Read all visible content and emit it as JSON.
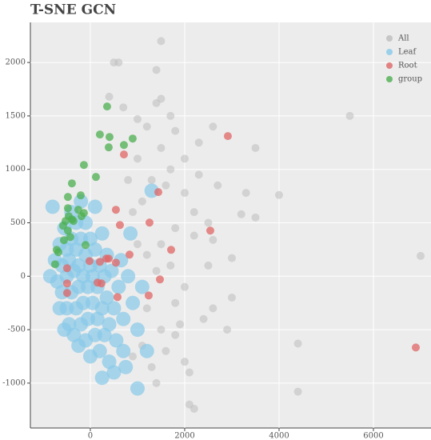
{
  "chart_data": {
    "type": "scatter",
    "title": "T-SNE GCN",
    "xlim": [
      -1270,
      7220
    ],
    "ylim": [
      -1420,
      2375
    ],
    "xticks": [
      0,
      2000,
      4000,
      6000
    ],
    "yticks": [
      -1000,
      -500,
      0,
      500,
      1000,
      1500,
      2000
    ],
    "grid": true,
    "legend": "top-right",
    "series": [
      {
        "name": "All",
        "color": "#bdbdbd",
        "x": [
          1500,
          500,
          600,
          400,
          700,
          1400,
          1500,
          1000,
          1200,
          1800,
          2600,
          3500,
          2300,
          2000,
          1500,
          1700,
          2300,
          1600,
          2000,
          2700,
          3300,
          4000,
          3200,
          3500,
          2200,
          2500,
          1800,
          2200,
          2600,
          3000,
          1700,
          1400,
          2000,
          1800,
          2600,
          3000,
          2400,
          2900,
          1800,
          1600,
          2000,
          2100,
          1400,
          2100,
          2200,
          4400,
          4400,
          5500,
          7000,
          1300,
          1100,
          900,
          1500,
          1200,
          1000,
          1200,
          900,
          1300,
          1000,
          800,
          1100,
          1500,
          2500,
          1900,
          1400,
          1700
        ],
        "values": [
          2200,
          2000,
          2000,
          1680,
          1580,
          1620,
          1660,
          1470,
          1400,
          1360,
          1400,
          1200,
          1250,
          1100,
          1200,
          1000,
          950,
          850,
          780,
          850,
          780,
          760,
          580,
          550,
          600,
          500,
          450,
          380,
          340,
          170,
          100,
          50,
          -100,
          -250,
          -300,
          -200,
          -400,
          -500,
          -550,
          -700,
          -800,
          -900,
          -1000,
          -1200,
          -1240,
          -630,
          -1080,
          1500,
          190,
          -850,
          -650,
          -750,
          -500,
          -300,
          300,
          200,
          600,
          900,
          1100,
          900,
          700,
          300,
          100,
          -450,
          1930,
          1500
        ]
      },
      {
        "name": "Leaf",
        "color": "#87c9e8",
        "x": [
          -750,
          -700,
          -650,
          -600,
          -600,
          -550,
          -500,
          -500,
          -500,
          -450,
          -450,
          -400,
          -400,
          -400,
          -350,
          -350,
          -300,
          -300,
          -300,
          -250,
          -250,
          -250,
          -200,
          -200,
          -200,
          -150,
          -150,
          -100,
          -100,
          -100,
          -50,
          -50,
          0,
          0,
          0,
          50,
          50,
          100,
          100,
          100,
          150,
          150,
          200,
          200,
          250,
          250,
          300,
          300,
          350,
          350,
          400,
          400,
          450,
          500,
          550,
          600,
          650,
          700,
          750,
          800,
          900,
          1000,
          1100,
          1200,
          1300,
          1000,
          -800,
          -850,
          -650,
          -550,
          500,
          250,
          850,
          700
        ],
        "values": [
          150,
          -50,
          300,
          -150,
          100,
          450,
          -300,
          0,
          250,
          -450,
          150,
          -150,
          350,
          600,
          -550,
          50,
          -300,
          250,
          500,
          -650,
          -100,
          100,
          -450,
          350,
          700,
          -250,
          0,
          -600,
          200,
          500,
          -400,
          -100,
          -750,
          100,
          350,
          -250,
          0,
          -550,
          250,
          650,
          -400,
          -100,
          -700,
          100,
          -300,
          400,
          -550,
          0,
          -200,
          200,
          -800,
          -450,
          50,
          -300,
          -600,
          -100,
          150,
          -400,
          -850,
          0,
          -250,
          -500,
          -100,
          -700,
          800,
          -1050,
          650,
          0,
          -300,
          -500,
          -900,
          -950,
          400,
          -700
        ]
      },
      {
        "name": "Root",
        "color": "#e06666",
        "x": [
          2915,
          2542,
          712,
          1441,
          542,
          627,
          1254,
          1712,
          831,
          1475,
          1237,
          576,
          203,
          -17,
          -492,
          339,
          390,
          -492,
          -492,
          153,
          237,
          542,
          6898
        ],
        "values": [
          1311,
          427,
          1139,
          787,
          622,
          479,
          502,
          247,
          202,
          -30,
          -180,
          -195,
          135,
          142,
          75,
          165,
          165,
          -67,
          -157,
          -60,
          -67,
          127,
          -667
        ]
      },
      {
        "name": "group",
        "color": "#4caf50",
        "x": [
          356,
          203,
          407,
          712,
          898,
          390,
          -136,
          119,
          -390,
          -475,
          -203,
          -475,
          -254,
          -136,
          -356,
          -525,
          -458,
          -390,
          -576,
          -559,
          -424,
          -712,
          -678,
          -746,
          -102,
          -475,
          -186
        ],
        "values": [
          1588,
          1326,
          1303,
          1228,
          1288,
          1206,
          1041,
          929,
          869,
          742,
          757,
          637,
          622,
          592,
          517,
          517,
          562,
          532,
          472,
          337,
          367,
          247,
          225,
          112,
          292,
          427,
          562
        ]
      }
    ]
  }
}
